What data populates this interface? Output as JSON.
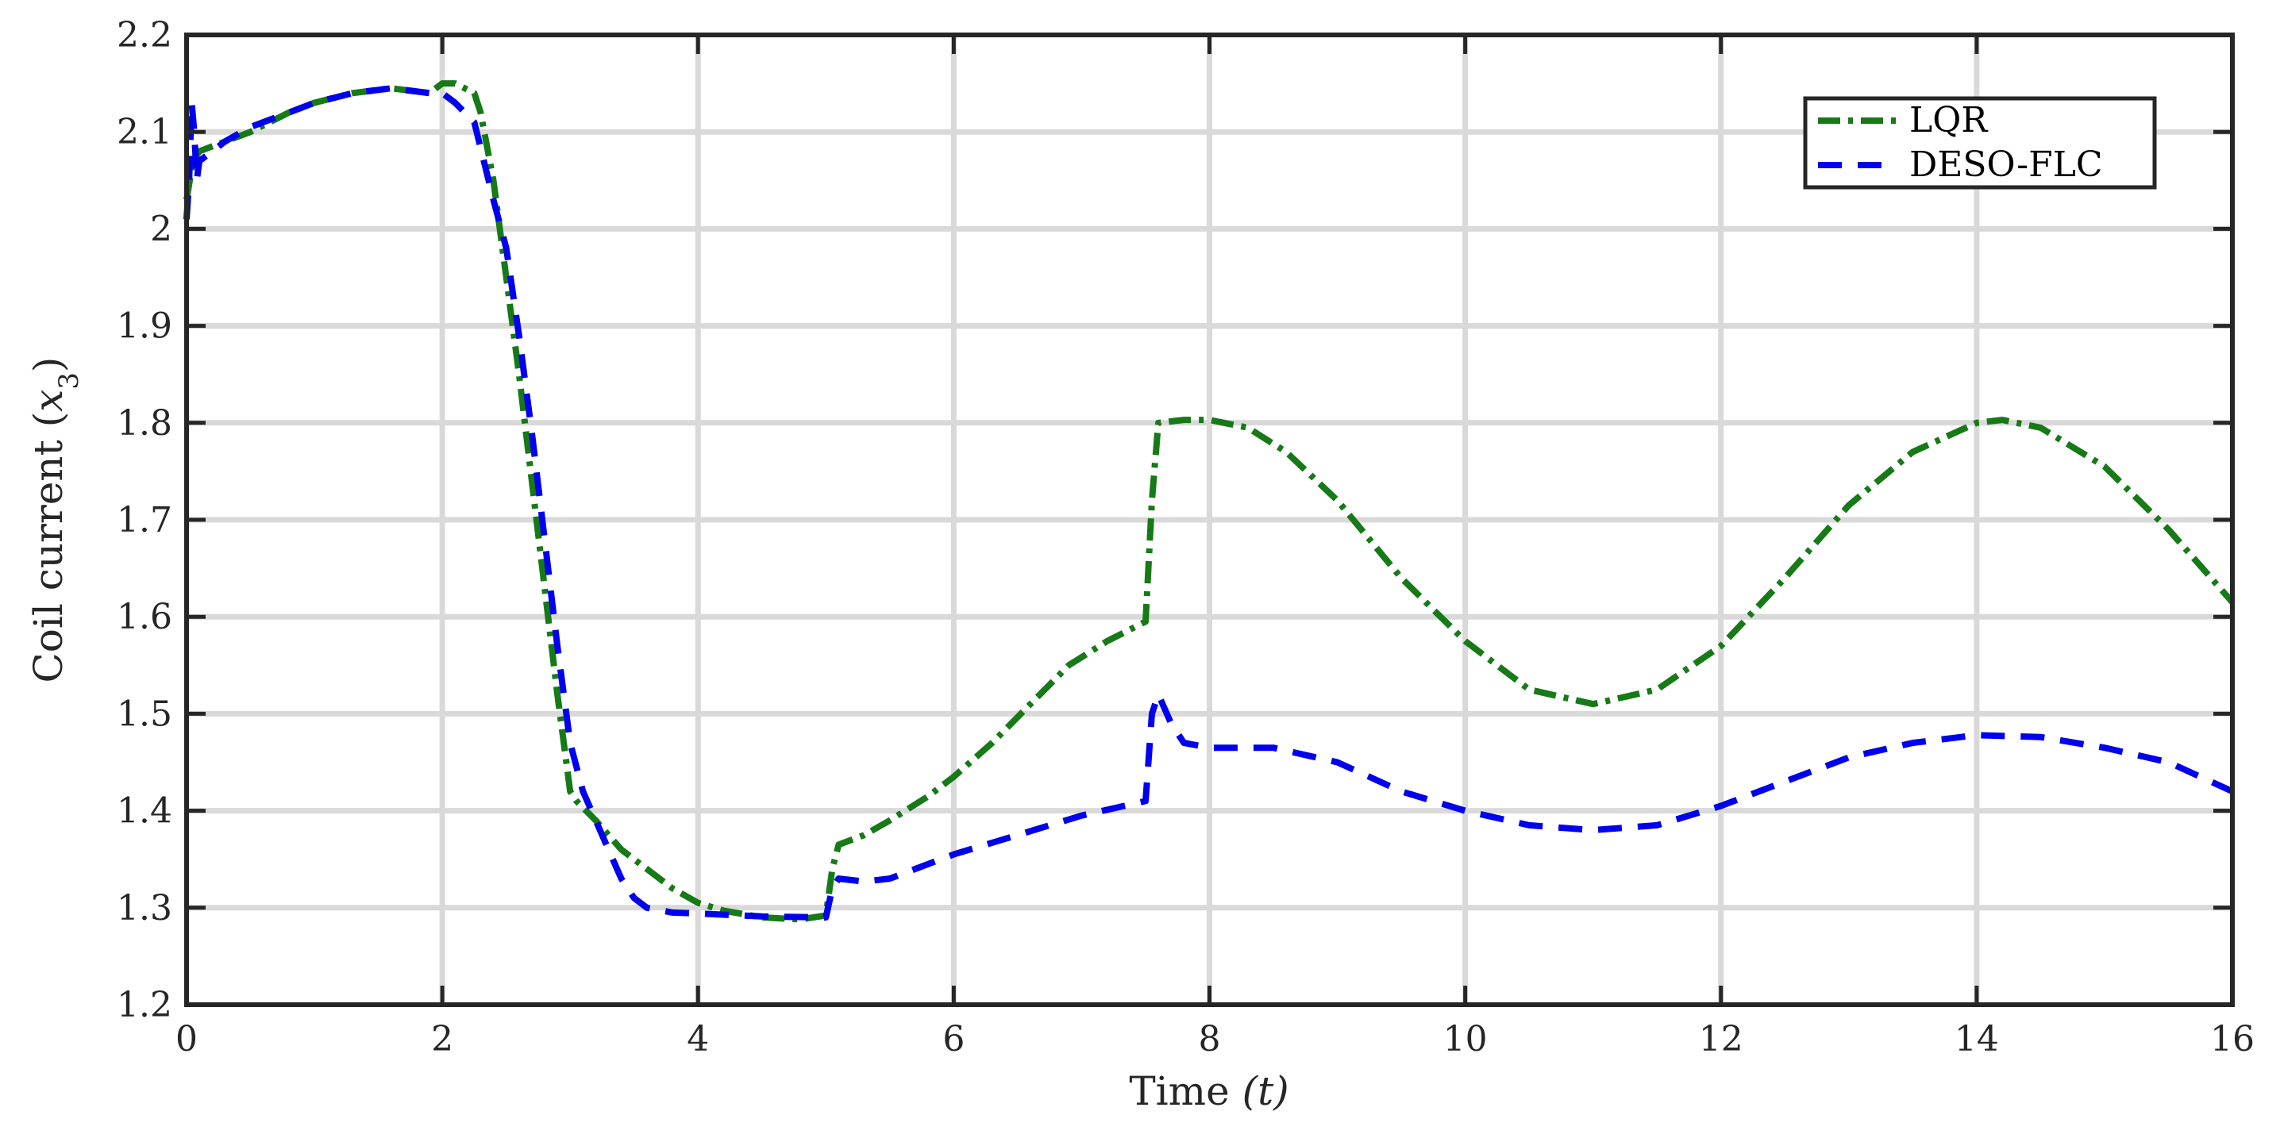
{
  "chart_data": {
    "type": "line",
    "title": "",
    "xlabel": "Time",
    "xlabel_symbol": "(t)",
    "ylabel": "Coil current",
    "ylabel_symbol": "(x3)",
    "xlim": [
      0,
      16
    ],
    "ylim": [
      1.2,
      2.2
    ],
    "x_ticks": [
      0,
      2,
      4,
      6,
      8,
      10,
      12,
      14,
      16
    ],
    "y_ticks": [
      1.2,
      1.3,
      1.4,
      1.5,
      1.6,
      1.7,
      1.8,
      1.9,
      2,
      2.1,
      2.2
    ],
    "grid": true,
    "legend_position": "top-right",
    "series": [
      {
        "name": "LQR",
        "color": "#167A16",
        "style": "dash-dot",
        "points": [
          [
            0,
            2.03
          ],
          [
            0.05,
            2.07
          ],
          [
            0.1,
            2.08
          ],
          [
            0.3,
            2.09
          ],
          [
            0.5,
            2.1
          ],
          [
            0.8,
            2.12
          ],
          [
            1.0,
            2.13
          ],
          [
            1.3,
            2.14
          ],
          [
            1.6,
            2.145
          ],
          [
            1.9,
            2.14
          ],
          [
            2.0,
            2.15
          ],
          [
            2.1,
            2.15
          ],
          [
            2.25,
            2.14
          ],
          [
            2.3,
            2.12
          ],
          [
            2.4,
            2.05
          ],
          [
            2.5,
            1.95
          ],
          [
            2.6,
            1.85
          ],
          [
            2.7,
            1.74
          ],
          [
            2.8,
            1.63
          ],
          [
            2.9,
            1.52
          ],
          [
            3.0,
            1.42
          ],
          [
            3.05,
            1.41
          ],
          [
            3.2,
            1.39
          ],
          [
            3.4,
            1.36
          ],
          [
            3.6,
            1.34
          ],
          [
            3.8,
            1.32
          ],
          [
            4.0,
            1.305
          ],
          [
            4.2,
            1.297
          ],
          [
            4.5,
            1.29
          ],
          [
            4.8,
            1.288
          ],
          [
            5.0,
            1.292
          ],
          [
            5.05,
            1.34
          ],
          [
            5.1,
            1.365
          ],
          [
            5.3,
            1.375
          ],
          [
            5.5,
            1.39
          ],
          [
            5.8,
            1.415
          ],
          [
            6.0,
            1.435
          ],
          [
            6.3,
            1.47
          ],
          [
            6.6,
            1.51
          ],
          [
            6.9,
            1.55
          ],
          [
            7.2,
            1.575
          ],
          [
            7.5,
            1.595
          ],
          [
            7.55,
            1.72
          ],
          [
            7.6,
            1.8
          ],
          [
            7.8,
            1.803
          ],
          [
            8.0,
            1.803
          ],
          [
            8.3,
            1.795
          ],
          [
            8.6,
            1.77
          ],
          [
            9.0,
            1.72
          ],
          [
            9.5,
            1.64
          ],
          [
            10.0,
            1.575
          ],
          [
            10.5,
            1.525
          ],
          [
            11.0,
            1.51
          ],
          [
            11.5,
            1.525
          ],
          [
            12.0,
            1.57
          ],
          [
            12.5,
            1.64
          ],
          [
            13.0,
            1.715
          ],
          [
            13.5,
            1.77
          ],
          [
            14.0,
            1.8
          ],
          [
            14.2,
            1.803
          ],
          [
            14.5,
            1.795
          ],
          [
            15.0,
            1.755
          ],
          [
            15.5,
            1.69
          ],
          [
            16.0,
            1.615
          ]
        ]
      },
      {
        "name": "DESO-FLC",
        "color": "#0000EE",
        "style": "dashed",
        "points": [
          [
            0,
            2.01
          ],
          [
            0.02,
            2.05
          ],
          [
            0.04,
            2.13
          ],
          [
            0.06,
            2.1
          ],
          [
            0.08,
            2.05
          ],
          [
            0.1,
            2.07
          ],
          [
            0.3,
            2.09
          ],
          [
            0.5,
            2.105
          ],
          [
            0.8,
            2.12
          ],
          [
            1.0,
            2.13
          ],
          [
            1.3,
            2.14
          ],
          [
            1.6,
            2.145
          ],
          [
            1.9,
            2.14
          ],
          [
            2.0,
            2.14
          ],
          [
            2.1,
            2.13
          ],
          [
            2.25,
            2.11
          ],
          [
            2.4,
            2.03
          ],
          [
            2.5,
            1.98
          ],
          [
            2.6,
            1.89
          ],
          [
            2.7,
            1.79
          ],
          [
            2.8,
            1.68
          ],
          [
            2.9,
            1.57
          ],
          [
            3.0,
            1.47
          ],
          [
            3.1,
            1.42
          ],
          [
            3.2,
            1.39
          ],
          [
            3.3,
            1.36
          ],
          [
            3.4,
            1.33
          ],
          [
            3.5,
            1.31
          ],
          [
            3.6,
            1.3
          ],
          [
            3.8,
            1.295
          ],
          [
            4.0,
            1.294
          ],
          [
            4.5,
            1.291
          ],
          [
            5.0,
            1.29
          ],
          [
            5.05,
            1.32
          ],
          [
            5.1,
            1.33
          ],
          [
            5.3,
            1.327
          ],
          [
            5.5,
            1.33
          ],
          [
            5.8,
            1.345
          ],
          [
            6.0,
            1.355
          ],
          [
            6.5,
            1.375
          ],
          [
            7.0,
            1.395
          ],
          [
            7.5,
            1.41
          ],
          [
            7.55,
            1.5
          ],
          [
            7.6,
            1.52
          ],
          [
            7.7,
            1.49
          ],
          [
            7.8,
            1.47
          ],
          [
            8.0,
            1.465
          ],
          [
            8.5,
            1.465
          ],
          [
            9.0,
            1.45
          ],
          [
            9.5,
            1.42
          ],
          [
            10.0,
            1.4
          ],
          [
            10.5,
            1.385
          ],
          [
            11.0,
            1.38
          ],
          [
            11.5,
            1.385
          ],
          [
            12.0,
            1.405
          ],
          [
            12.5,
            1.43
          ],
          [
            13.0,
            1.455
          ],
          [
            13.5,
            1.47
          ],
          [
            14.0,
            1.478
          ],
          [
            14.5,
            1.476
          ],
          [
            15.0,
            1.465
          ],
          [
            15.5,
            1.45
          ],
          [
            16.0,
            1.42
          ]
        ]
      }
    ]
  }
}
